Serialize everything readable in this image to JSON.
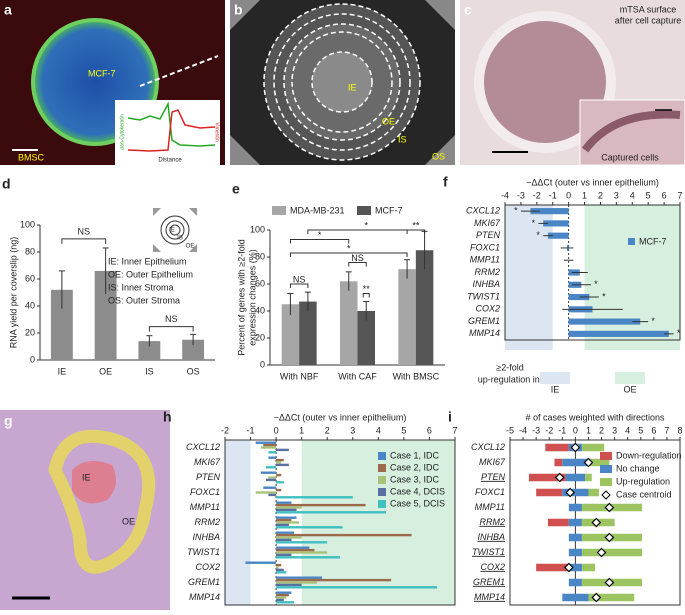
{
  "images": {
    "a": {
      "label": "a",
      "texts": [
        "MCF-7",
        "BMSC"
      ],
      "inset": {
        "y_left": "pan-Cytokeratin",
        "y_right": "Vimentin",
        "x": "Distance"
      }
    },
    "b": {
      "label": "b",
      "texts": [
        "IE",
        "OE",
        "IS",
        "OS"
      ]
    },
    "c": {
      "label": "c",
      "texts": [
        "mTSA surface",
        "after cell capture",
        "Captured cells"
      ]
    },
    "g": {
      "label": "g",
      "texts": [
        "IE",
        "OE"
      ]
    }
  },
  "chart_data": [
    {
      "type": "bar",
      "panel_label": "d",
      "ylabel": "RNA yield per coverslip (ng)",
      "categories": [
        "IE",
        "OE",
        "IS",
        "OS"
      ],
      "values": [
        52,
        66,
        14,
        15
      ],
      "errors": [
        14,
        17,
        4,
        4
      ],
      "color": "#8c8c8c",
      "ylim": [
        0,
        100
      ],
      "yticks": [
        0,
        20,
        40,
        60,
        80,
        100
      ],
      "annotations": [
        "NS",
        "NS"
      ],
      "legend_text": [
        "IE: Inner Epithelium",
        "OE: Outer Epithelium",
        "IS: Inner Stroma",
        "OS: Outer Stroma"
      ],
      "diagram_labels": [
        "IE",
        "IS",
        "OE"
      ]
    },
    {
      "type": "grouped_bar",
      "panel_label": "e",
      "ylabel": [
        "Percent of genes with ≥2-fold",
        "expression changes (%)"
      ],
      "categories": [
        "With NBF",
        "With CAF",
        "With BMSC"
      ],
      "series": [
        {
          "name": "MDA-MB-231",
          "color": "#a6a6a6",
          "values": [
            45,
            62,
            71
          ],
          "errors": [
            8,
            7,
            7
          ]
        },
        {
          "name": "MCF-7",
          "color": "#555555",
          "values": [
            47,
            40,
            85
          ],
          "errors": [
            7,
            7,
            14
          ]
        }
      ],
      "ylim": [
        0,
        100
      ],
      "yticks": [
        0,
        20,
        40,
        60,
        80,
        100
      ],
      "annotations": [
        "NS",
        "NS",
        "**",
        "*",
        "*",
        "*",
        "**"
      ]
    },
    {
      "type": "hbar",
      "panel_label": "f",
      "xlabel": "−ΔΔCt (outer vs inner epithelium)",
      "categories": [
        "CXCL12",
        "MKI67",
        "PTEN",
        "FOXC1",
        "MMP11",
        "RRM2",
        "INHBA",
        "TWIST1",
        "COX2",
        "GREM1",
        "MMP14"
      ],
      "series": [
        {
          "name": "MCF-7",
          "color": "#4a86c5",
          "values": [
            -2.4,
            -1.6,
            -1.3,
            -0.1,
            0,
            0.7,
            0.8,
            1.3,
            1.5,
            4.5,
            6.3
          ],
          "errors": [
            0.6,
            0.3,
            0.3,
            0.4,
            0.3,
            0.5,
            0.6,
            0.6,
            1.9,
            0.5,
            0.3
          ],
          "significance": [
            "*",
            "*",
            "*",
            "",
            "",
            "",
            "*",
            "*",
            "",
            "*",
            "*"
          ]
        }
      ],
      "xlim": [
        -4,
        7
      ],
      "xticks": [
        -4,
        -3,
        -2,
        -1,
        0,
        1,
        2,
        3,
        4,
        5,
        6,
        7
      ],
      "shading": [
        {
          "label": "IE",
          "from": -4,
          "to": -1,
          "color": "#dce6f2"
        },
        {
          "label": "OE",
          "from": 1,
          "to": 7,
          "color": "#d6efdf"
        }
      ],
      "shading_title": [
        "≥2-fold",
        "up-regulation in:"
      ]
    },
    {
      "type": "hbar_grouped",
      "panel_label": "h",
      "xlabel": "−ΔΔCt (outer vs inner epithelium)",
      "categories": [
        "CXCL12",
        "MKI67",
        "PTEN",
        "FOXC1",
        "MMP11",
        "RRM2",
        "INHBA",
        "TWIST1",
        "COX2",
        "GREM1",
        "MMP14"
      ],
      "series": [
        {
          "name": "Case 1, IDC",
          "color": "#4a86c5",
          "values": [
            -0.8,
            -0.3,
            -0.6,
            -0.5,
            0.6,
            0.8,
            0.7,
            1.3,
            -1.2,
            1.8,
            0.6
          ]
        },
        {
          "name": "Case 2, IDC",
          "color": "#9b6a4a",
          "values": [
            -0.5,
            0.3,
            0.2,
            0.2,
            3.5,
            0.6,
            5.3,
            1.5,
            0.2,
            4.5,
            0.5
          ]
        },
        {
          "name": "Case 3, IDC",
          "color": "#a9c27a",
          "values": [
            -0.6,
            0.2,
            -0.3,
            -0.8,
            1,
            0.9,
            1,
            2,
            0.1,
            1.6,
            0.4
          ]
        },
        {
          "name": "Case 4, DCIS",
          "color": "#5b6fa0",
          "values": [
            0.5,
            0.5,
            -0.4,
            -0.3,
            0.8,
            0.5,
            0.6,
            0.6,
            0.3,
            1,
            0.3
          ]
        },
        {
          "name": "Case 5, DCIS",
          "color": "#3fbfbf",
          "values": [
            -0.3,
            -0.4,
            0.3,
            3,
            4.3,
            2.6,
            2,
            2.5,
            0.4,
            6.3,
            0.7
          ]
        }
      ],
      "xlim": [
        -2,
        7
      ],
      "xticks": [
        -2,
        -1,
        0,
        1,
        2,
        3,
        4,
        5,
        6,
        7
      ],
      "shading": [
        {
          "from": -2,
          "to": -1,
          "color": "#dce6f2"
        },
        {
          "from": 1,
          "to": 7,
          "color": "#d6efdf"
        }
      ]
    },
    {
      "type": "diverging_stacked",
      "panel_label": "i",
      "xlabel": "# of cases weighted with directions",
      "categories": [
        "CXCL12",
        "MKI67",
        "PTEN",
        "FOXC1",
        "MMP11",
        "RRM2",
        "INHBA",
        "TWIST1",
        "COX2",
        "GREM1",
        "MMP14"
      ],
      "underlined": [
        false,
        false,
        true,
        false,
        false,
        true,
        true,
        true,
        true,
        true,
        true
      ],
      "series": [
        {
          "name": "Down-regulation",
          "color": "#d0504f",
          "values": [
            1.8,
            0.6,
            2.8,
            2,
            0,
            1.6,
            0,
            0,
            2.5,
            0,
            0
          ]
        },
        {
          "name": "No change",
          "color": "#4a86c5",
          "values": [
            1,
            2,
            1.5,
            2,
            1,
            1,
            1,
            1,
            1,
            1,
            2
          ]
        },
        {
          "name": "Up-regulation",
          "color": "#9cc461",
          "values": [
            1.7,
            1.6,
            0.5,
            0.8,
            4.6,
            2.5,
            4.6,
            4.6,
            1,
            4.6,
            3.5
          ]
        }
      ],
      "centroid": {
        "name": "Case centroid",
        "values": [
          0,
          1,
          -1.2,
          -0.4,
          2.6,
          1.6,
          2.6,
          2,
          -0.5,
          2.6,
          1.6
        ]
      },
      "xlim": [
        -5,
        8
      ],
      "xticks": [
        -5,
        -4,
        -3,
        -2,
        -1,
        0,
        1,
        2,
        3,
        4,
        5,
        6,
        7,
        8
      ]
    }
  ]
}
